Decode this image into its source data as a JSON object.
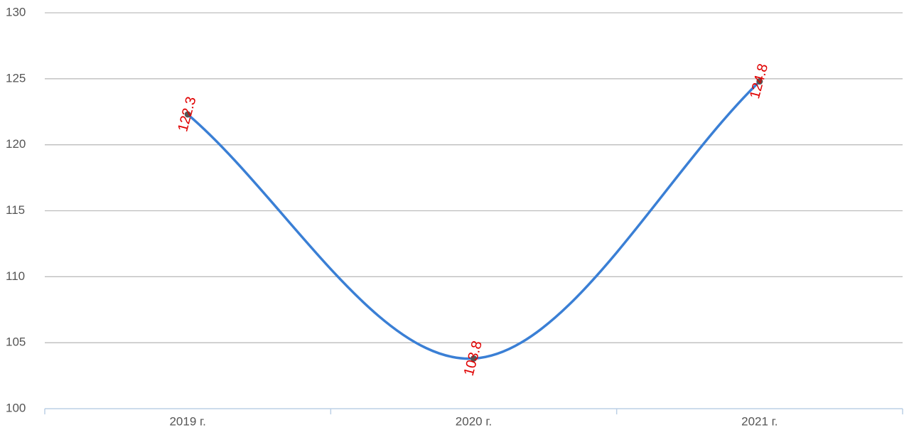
{
  "chart_data": {
    "type": "line",
    "categories": [
      "2019 г.",
      "2020 г.",
      "2021 г."
    ],
    "series": [
      {
        "color": "#3a7fd5",
        "values": [
          122.3,
          103.8,
          124.8
        ]
      }
    ],
    "ylim": [
      100,
      130
    ],
    "yticks": [
      100,
      105,
      110,
      115,
      120,
      125,
      130
    ],
    "grid": true,
    "label_color": "#e00000",
    "point_color": "#555555"
  }
}
